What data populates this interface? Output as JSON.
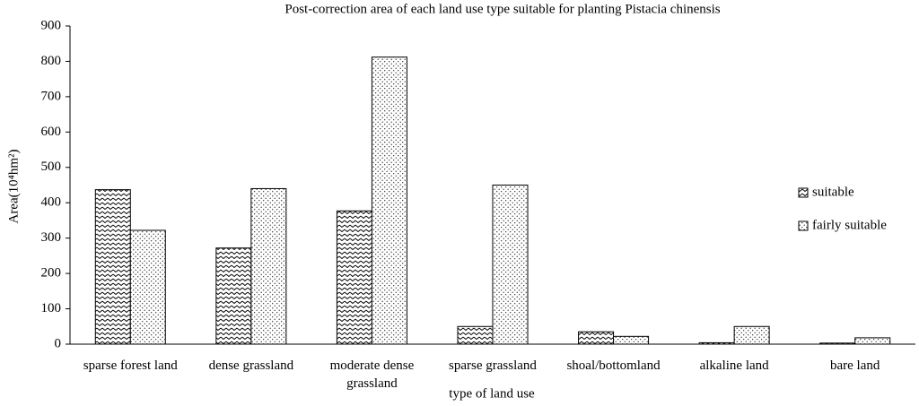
{
  "chart_data": {
    "type": "bar",
    "title": "Post-correction area of each land use type suitable for planting Pistacia chinensis",
    "x_label": "type of land use",
    "y_label": "Area(10⁴hm²)",
    "categories": [
      "sparse forest land",
      "dense grassland",
      "moderate dense grassland",
      "sparse grassland",
      "shoal/bottomland",
      "alkaline land",
      "bare land"
    ],
    "series": [
      {
        "name": "suitable",
        "color": "#000000",
        "pattern": "zigzag",
        "values": [
          437,
          272,
          377,
          50,
          35,
          4,
          3
        ]
      },
      {
        "name": "fairly suitable",
        "color": "#000000",
        "pattern": "dots",
        "values": [
          322,
          440,
          812,
          450,
          22,
          50,
          18
        ]
      }
    ],
    "ylim": [
      0,
      900
    ],
    "yticks": [
      0,
      100,
      200,
      300,
      400,
      500,
      600,
      700,
      800,
      900
    ],
    "grid": false,
    "legend": "right"
  }
}
